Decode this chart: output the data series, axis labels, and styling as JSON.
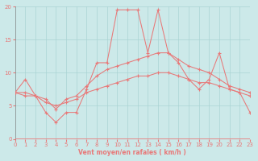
{
  "xlabel": "Vent moyen/en rafales ( km/h )",
  "xlim": [
    0,
    23
  ],
  "ylim": [
    0,
    20
  ],
  "xticks": [
    0,
    1,
    2,
    3,
    4,
    5,
    6,
    7,
    8,
    9,
    10,
    11,
    12,
    13,
    14,
    15,
    16,
    17,
    18,
    19,
    20,
    21,
    22,
    23
  ],
  "yticks": [
    0,
    5,
    10,
    15,
    20
  ],
  "bg_color": "#cce9e9",
  "grid_color": "#aad4d4",
  "line_color": "#e87878",
  "series1_y": [
    7,
    9,
    6.5,
    4,
    2.5,
    4,
    4,
    7.5,
    11.5,
    11.5,
    19.5,
    19.5,
    19.5,
    13,
    19.5,
    13,
    11.5,
    9,
    7.5,
    9,
    13,
    7.5,
    7,
    4
  ],
  "series2_y": [
    7,
    7,
    6.5,
    6,
    4.5,
    6,
    6.5,
    8,
    9.5,
    10.5,
    11,
    11.5,
    12,
    12.5,
    13,
    13,
    12,
    11,
    10.5,
    10,
    9,
    8,
    7.5,
    7
  ],
  "series3_y": [
    7,
    6.5,
    6.5,
    5.5,
    5,
    5.5,
    6,
    7,
    7.5,
    8,
    8.5,
    9,
    9.5,
    9.5,
    10,
    10,
    9.5,
    9,
    8.5,
    8.5,
    8,
    7.5,
    7,
    6.5
  ]
}
